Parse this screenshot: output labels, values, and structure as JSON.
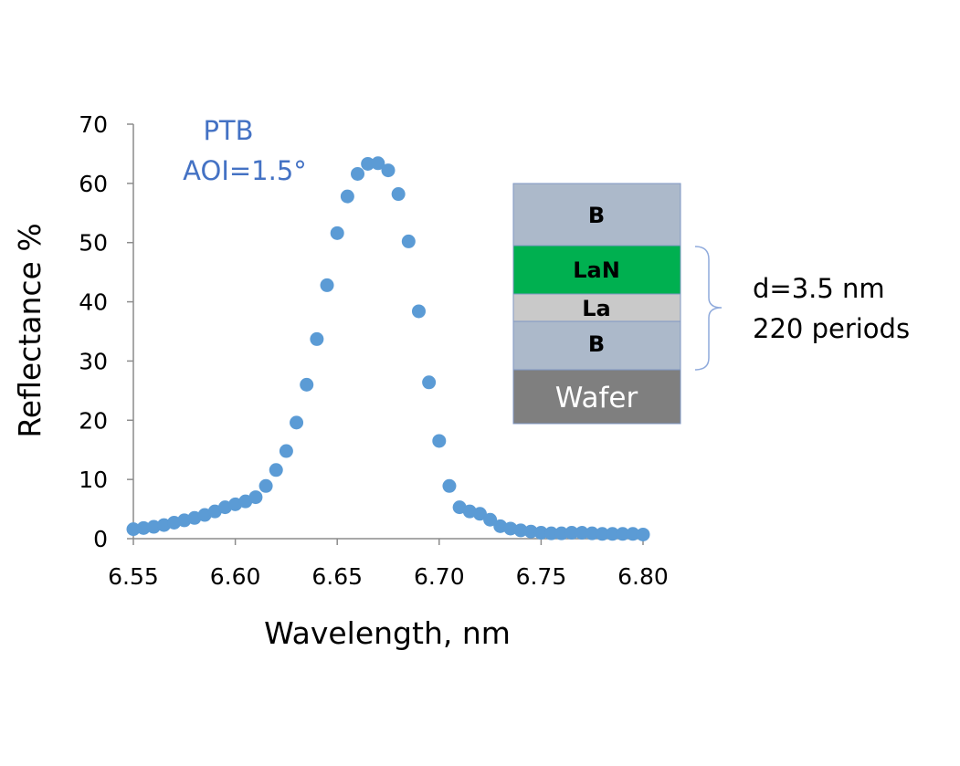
{
  "colors": {
    "series": "#5B9BD5",
    "annotation": "#4472C4",
    "axis": "#8C8C8C",
    "layer_B": "#ACB9CA",
    "layer_LaN": "#00B050",
    "layer_La": "#C9C9C9",
    "layer_wafer": "#7F7F7F",
    "layer_border": "#7F97C4",
    "brace": "#8FAADC"
  },
  "chart_data": {
    "type": "scatter",
    "xlabel": "Wavelength, nm",
    "ylabel": "Reflectance %",
    "xlim": [
      6.55,
      6.8
    ],
    "ylim": [
      0,
      70
    ],
    "x_ticks": [
      "6.55",
      "6.60",
      "6.65",
      "6.70",
      "6.75",
      "6.80"
    ],
    "y_ticks": [
      "0",
      "10",
      "20",
      "30",
      "40",
      "50",
      "60",
      "70"
    ],
    "grid": false,
    "annotations": [
      "PTB",
      "AOI=1.5°"
    ],
    "series": [
      {
        "x": [
          6.55,
          6.555,
          6.56,
          6.565,
          6.57,
          6.575,
          6.58,
          6.585,
          6.59,
          6.595,
          6.6,
          6.605,
          6.61,
          6.615,
          6.62,
          6.625,
          6.63,
          6.635,
          6.64,
          6.645,
          6.65,
          6.655,
          6.66,
          6.665,
          6.67,
          6.675,
          6.68,
          6.685,
          6.69,
          6.695,
          6.7,
          6.705,
          6.71,
          6.715,
          6.72,
          6.725,
          6.73,
          6.735,
          6.74,
          6.745,
          6.75,
          6.755,
          6.76,
          6.765,
          6.77,
          6.775,
          6.78,
          6.785,
          6.79,
          6.795,
          6.8
        ],
        "y": [
          1.6,
          1.8,
          2.0,
          2.3,
          2.7,
          3.1,
          3.5,
          4.0,
          4.6,
          5.3,
          5.8,
          6.3,
          7.0,
          8.9,
          11.6,
          14.8,
          19.6,
          26.0,
          33.7,
          42.8,
          51.6,
          57.8,
          61.6,
          63.3,
          63.4,
          62.2,
          58.2,
          50.2,
          38.4,
          26.4,
          16.5,
          8.9,
          5.3,
          4.6,
          4.2,
          3.2,
          2.1,
          1.7,
          1.4,
          1.2,
          1.0,
          0.9,
          0.9,
          1.0,
          1.0,
          0.9,
          0.8,
          0.8,
          0.8,
          0.8,
          0.7
        ]
      }
    ]
  },
  "stack": {
    "layers": [
      "B",
      "LaN",
      "La",
      "B",
      "Wafer"
    ],
    "period_text": "d=3.5 nm",
    "periods_text": "220 periods"
  }
}
